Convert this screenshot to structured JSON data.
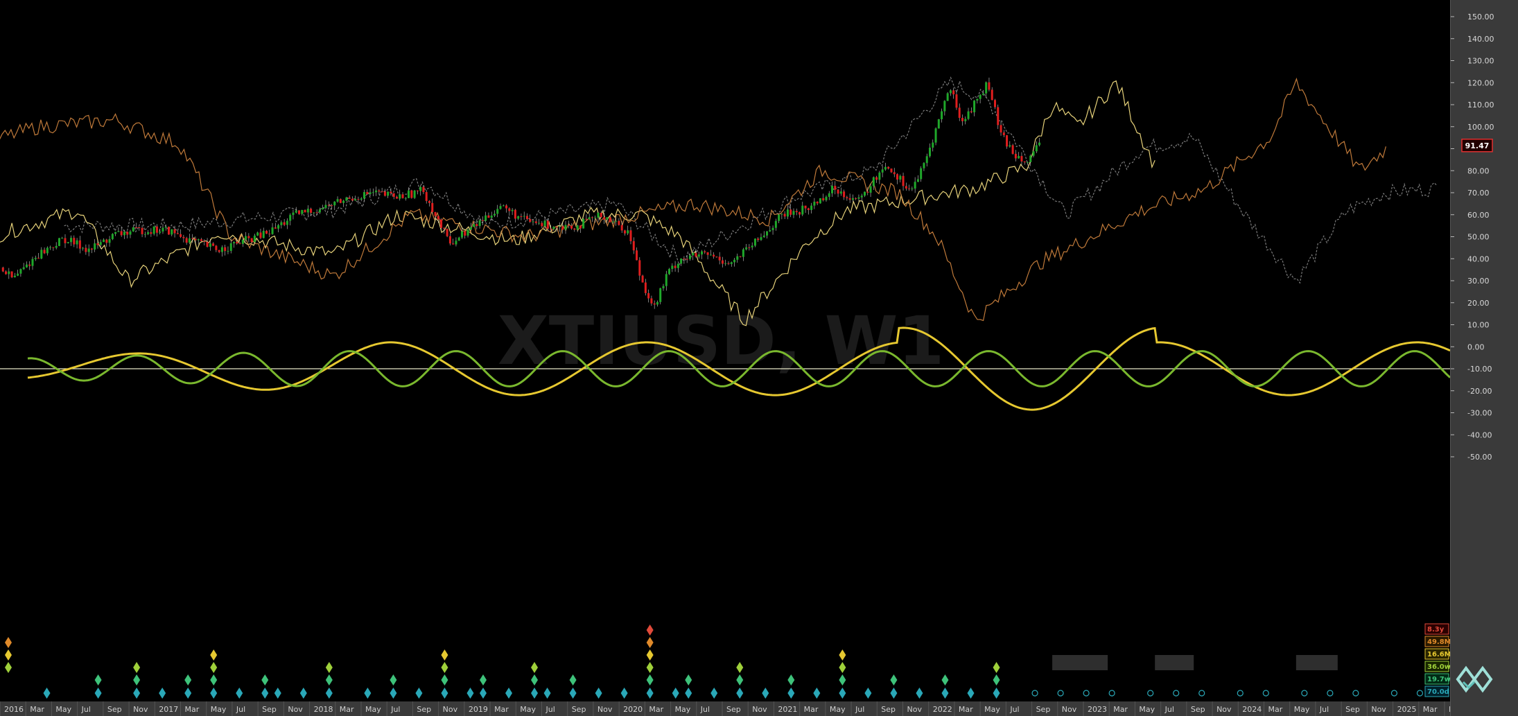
{
  "watermark": "XTIUSD, W1",
  "chart_data": {
    "type": "line",
    "y_axis": {
      "ticks": [
        "150.00",
        "140.00",
        "130.00",
        "120.00",
        "110.00",
        "100.00",
        "90.00",
        "80.00",
        "70.00",
        "60.00",
        "50.00",
        "40.00",
        "30.00",
        "20.00",
        "10.00",
        "0.00",
        "-10.00",
        "-20.00",
        "-30.00",
        "-40.00",
        "-50.00"
      ],
      "ylim": [
        -50,
        150
      ]
    },
    "x_axis": {
      "ticks": [
        "2016",
        "Mar",
        "May",
        "Jul",
        "Sep",
        "Nov",
        "2017",
        "Mar",
        "May",
        "Jul",
        "Sep",
        "Nov",
        "2018",
        "Mar",
        "May",
        "Jul",
        "Sep",
        "Nov",
        "2019",
        "Mar",
        "May",
        "Jul",
        "Sep",
        "Nov",
        "2020",
        "Mar",
        "May",
        "Jul",
        "Sep",
        "Nov",
        "2021",
        "Mar",
        "May",
        "Jul",
        "Sep",
        "Nov",
        "2022",
        "Mar",
        "May",
        "Jul",
        "Sep",
        "Nov",
        "2023",
        "Mar",
        "May",
        "Jul",
        "Sep",
        "Nov",
        "2024",
        "Mar",
        "May",
        "Jul",
        "Sep",
        "Nov",
        "2025",
        "Mar",
        "May"
      ],
      "range": [
        "2016-01",
        "2025-05"
      ]
    },
    "current_price": "91.47",
    "price_series": {
      "name": "XTIUSD",
      "dates": [
        "2016-01",
        "2016-02",
        "2016-04",
        "2016-06",
        "2016-08",
        "2016-10",
        "2016-12",
        "2017-02",
        "2017-04",
        "2017-06",
        "2017-08",
        "2017-10",
        "2017-12",
        "2018-02",
        "2018-04",
        "2018-06",
        "2018-08",
        "2018-10",
        "2018-12",
        "2019-02",
        "2019-04",
        "2019-06",
        "2019-08",
        "2019-10",
        "2019-12",
        "2020-02",
        "2020-03",
        "2020-04",
        "2020-05",
        "2020-06",
        "2020-08",
        "2020-10",
        "2020-12",
        "2021-02",
        "2021-04",
        "2021-06",
        "2021-08",
        "2021-10",
        "2021-12",
        "2022-01",
        "2022-03",
        "2022-04",
        "2022-06",
        "2022-07",
        "2022-08",
        "2022-09",
        "2022-10"
      ],
      "values": [
        36,
        31,
        42,
        49,
        44,
        51,
        53,
        53,
        48,
        44,
        48,
        52,
        60,
        63,
        67,
        70,
        68,
        71,
        47,
        55,
        64,
        57,
        55,
        55,
        60,
        52,
        30,
        18,
        33,
        40,
        42,
        38,
        48,
        60,
        63,
        72,
        66,
        83,
        71,
        82,
        118,
        102,
        120,
        96,
        88,
        85,
        91
      ]
    },
    "projections": [
      {
        "color": "#7a7a7a",
        "style": "dashed",
        "dates": [
          "2016-06",
          "2017-03",
          "2018-03",
          "2018-10",
          "2019-03",
          "2020-01",
          "2020-06",
          "2021-03",
          "2021-09",
          "2022-03",
          "2022-06",
          "2022-12",
          "2023-06",
          "2023-10",
          "2024-02",
          "2024-06",
          "2024-10",
          "2025-01",
          "2025-05"
        ],
        "values": [
          55,
          55,
          62,
          75,
          55,
          65,
          40,
          68,
          80,
          120,
          112,
          60,
          90,
          95,
          60,
          30,
          62,
          70,
          72
        ]
      },
      {
        "color": "#e7d27a",
        "style": "solid",
        "dates": [
          "2016-01",
          "2016-07",
          "2016-11",
          "2017-06",
          "2018-03",
          "2018-08",
          "2019-05",
          "2019-11",
          "2020-03",
          "2020-06",
          "2020-11",
          "2021-04",
          "2021-07",
          "2022-01",
          "2022-05",
          "2022-09",
          "2022-11",
          "2023-01",
          "2023-04",
          "2023-07"
        ],
        "values": [
          51,
          62,
          30,
          52,
          42,
          60,
          48,
          60,
          60,
          50,
          12,
          48,
          62,
          68,
          72,
          82,
          110,
          100,
          120,
          82
        ]
      },
      {
        "color": "#c07a3a",
        "style": "solid",
        "dates": [
          "2015-12",
          "2016-04",
          "2016-10",
          "2017-03",
          "2017-07",
          "2018-03",
          "2018-09",
          "2019-06",
          "2020-01",
          "2020-07",
          "2021-01",
          "2021-05",
          "2021-11",
          "2022-02",
          "2022-05",
          "2022-10",
          "2023-06",
          "2023-11",
          "2024-04",
          "2024-06",
          "2024-11",
          "2025-01"
        ],
        "values": [
          93,
          100,
          103,
          92,
          50,
          32,
          60,
          50,
          58,
          65,
          58,
          80,
          70,
          50,
          12,
          38,
          62,
          72,
          95,
          120,
          80,
          90
        ]
      }
    ],
    "cycles": [
      {
        "name": "yellow-cycle",
        "color": "#e6c830",
        "amplitude": 12,
        "period_months": 20,
        "offset": -10
      },
      {
        "name": "green-cycle",
        "color": "#7ab82e",
        "amplitude": 8,
        "period_months": 8.3,
        "offset": -10
      }
    ],
    "baseline": -10
  },
  "legend": {
    "items": [
      {
        "label": "8.3y",
        "color": "#e04a3a",
        "fill": "#2a0000"
      },
      {
        "label": "49.8M",
        "color": "#e08a2a",
        "fill": "#2a1a00"
      },
      {
        "label": "16.6M",
        "color": "#e6c830",
        "fill": "#2a2500"
      },
      {
        "label": "36.0w",
        "color": "#9fd03a",
        "fill": "#182600"
      },
      {
        "label": "19.7w",
        "color": "#3ec27a",
        "fill": "#002a15"
      },
      {
        "label": "70.0d",
        "color": "#2aa8b8",
        "fill": "#00202a"
      }
    ]
  },
  "diamonds": {
    "rows": [
      {
        "color": "#2aa8b8",
        "dates": [
          "2016-04",
          "2016-08",
          "2016-11",
          "2017-01",
          "2017-03",
          "2017-05",
          "2017-07",
          "2017-09",
          "2017-10",
          "2017-12",
          "2018-02",
          "2018-05",
          "2018-07",
          "2018-09",
          "2018-11",
          "2019-01",
          "2019-02",
          "2019-04",
          "2019-06",
          "2019-07",
          "2019-09",
          "2019-11",
          "2020-01",
          "2020-03",
          "2020-05",
          "2020-06",
          "2020-08",
          "2020-10",
          "2020-12",
          "2021-02",
          "2021-04",
          "2021-06",
          "2021-08",
          "2021-10",
          "2021-12",
          "2022-02",
          "2022-04",
          "2022-06"
        ]
      },
      {
        "color": "#3ec27a",
        "dates": [
          "2016-08",
          "2016-11",
          "2017-03",
          "2017-05",
          "2017-09",
          "2018-02",
          "2018-07",
          "2018-11",
          "2019-02",
          "2019-06",
          "2019-09",
          "2020-03",
          "2020-06",
          "2020-10",
          "2021-02",
          "2021-06",
          "2021-10",
          "2022-02",
          "2022-06"
        ]
      },
      {
        "color": "#9fd03a",
        "dates": [
          "2016-01",
          "2016-11",
          "2017-05",
          "2018-02",
          "2018-11",
          "2019-06",
          "2020-03",
          "2020-10",
          "2021-06",
          "2022-06"
        ]
      },
      {
        "color": "#e6c830",
        "dates": [
          "2016-01",
          "2017-05",
          "2018-11",
          "2020-03",
          "2021-06"
        ]
      },
      {
        "color": "#e08a2a",
        "dates": [
          "2016-01",
          "2020-03"
        ]
      },
      {
        "color": "#e04a3a",
        "dates": [
          "2020-03"
        ]
      }
    ]
  }
}
